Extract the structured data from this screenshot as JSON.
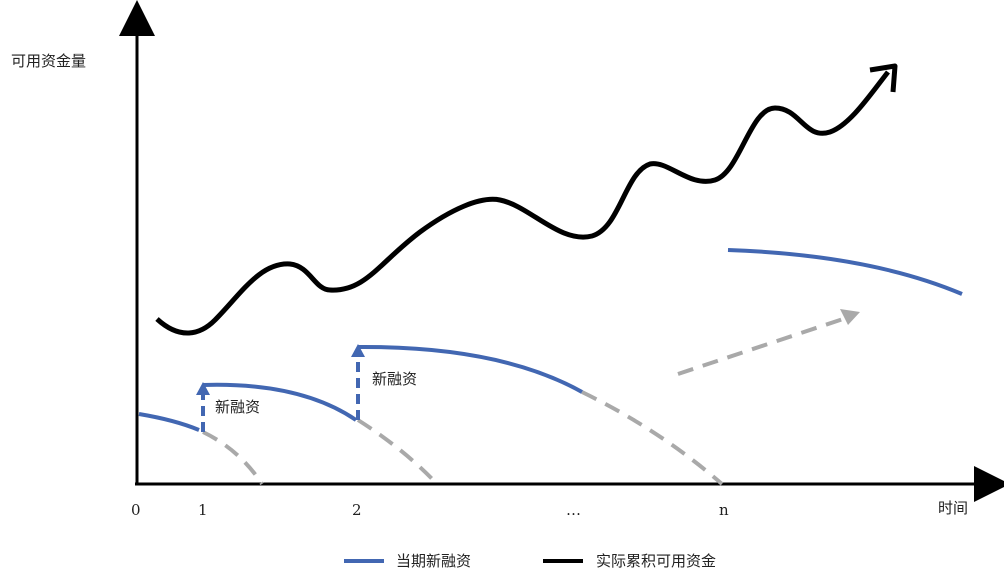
{
  "diagram": {
    "y_axis_label": "可用资金量",
    "x_axis_label": "时间",
    "x_ticks": [
      "0",
      "1",
      "2",
      "…",
      "n"
    ],
    "annotations": [
      "新融资",
      "新融资"
    ],
    "legend": [
      {
        "label": "当期新融资",
        "color": "#4267b2"
      },
      {
        "label": "实际累积可用资金",
        "color": "#000000"
      }
    ],
    "colors": {
      "new_financing": "#4267b2",
      "cumulative_funds": "#000000",
      "decay_projection": "#a9a9a9",
      "axis": "#000000"
    }
  }
}
